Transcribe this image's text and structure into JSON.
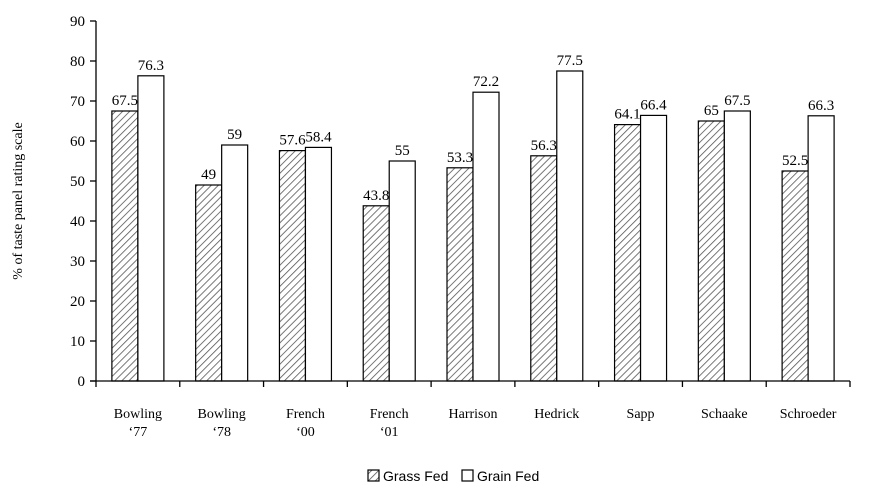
{
  "chart_data": {
    "type": "bar",
    "ylabel": "% of taste panel rating scale",
    "ylim": [
      0,
      90
    ],
    "yticks": [
      0,
      10,
      20,
      30,
      40,
      50,
      60,
      70,
      80,
      90
    ],
    "categories": [
      [
        "Bowling",
        "‘77"
      ],
      [
        "Bowling",
        "‘78"
      ],
      [
        "French",
        "‘00"
      ],
      [
        "French",
        "‘01"
      ],
      [
        "Harrison"
      ],
      [
        "Hedrick"
      ],
      [
        "Sapp"
      ],
      [
        "Schaake"
      ],
      [
        "Schroeder"
      ]
    ],
    "series": [
      {
        "name": "Grass Fed",
        "values": [
          67.5,
          49,
          57.6,
          43.8,
          53.3,
          56.3,
          64.1,
          65,
          52.5
        ],
        "labels": [
          "67.5",
          "49",
          "57.6",
          "43.8",
          "53.3",
          "56.3",
          "64.1",
          "65",
          "52.5"
        ],
        "pattern": "diagonal-hatch"
      },
      {
        "name": "Grain Fed",
        "values": [
          76.3,
          59,
          58.4,
          55,
          72.2,
          77.5,
          66.4,
          67.5,
          66.3
        ],
        "labels": [
          "76.3",
          "59",
          "58.4",
          "55",
          "72.2",
          "77.5",
          "66.4",
          "67.5",
          "66.3"
        ],
        "pattern": "solid-white"
      }
    ],
    "legend_position": "bottom-center",
    "grid": false,
    "colors": {
      "stroke": "#000000",
      "hatch": "#555555",
      "background": "#ffffff"
    }
  }
}
